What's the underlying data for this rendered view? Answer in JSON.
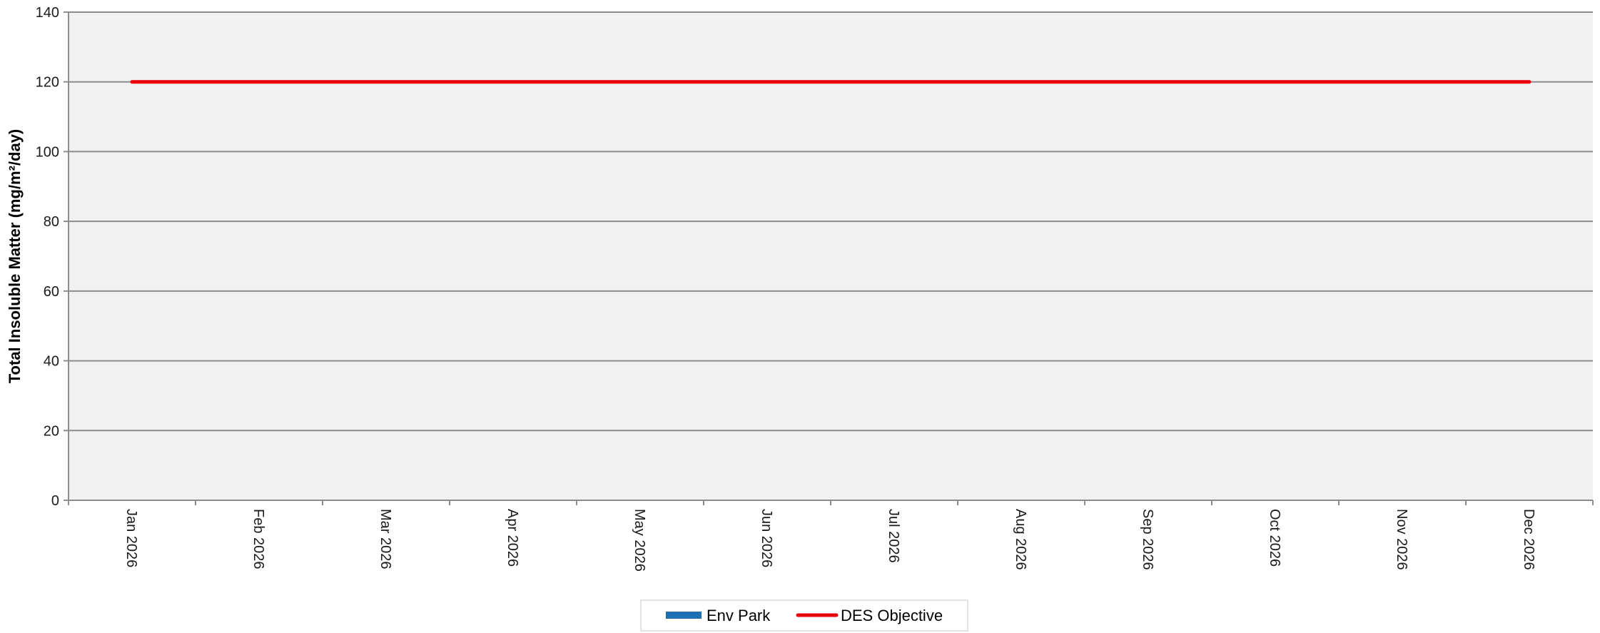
{
  "chart_data": {
    "type": "line",
    "title": "",
    "xlabel": "",
    "ylabel": "Total Insoluble Matter (mg/m²/day)",
    "ylim": [
      0,
      140
    ],
    "yticks": [
      "0",
      "20",
      "40",
      "60",
      "80",
      "100",
      "120",
      "140"
    ],
    "categories": [
      "Jan 2026",
      "Feb 2026",
      "Mar 2026",
      "Apr 2026",
      "May 2026",
      "Jun 2026",
      "Jul 2026",
      "Aug 2026",
      "Sep 2026",
      "Oct 2026",
      "Nov 2026",
      "Dec 2026"
    ],
    "grid": true,
    "legend_position": "bottom",
    "series": [
      {
        "name": "Env Park",
        "type": "bar",
        "color": "#1f6fb5",
        "values": [
          null,
          null,
          null,
          null,
          null,
          null,
          null,
          null,
          null,
          null,
          null,
          null
        ]
      },
      {
        "name": "DES Objective",
        "type": "line",
        "color": "#e8000b",
        "values": [
          120,
          120,
          120,
          120,
          120,
          120,
          120,
          120,
          120,
          120,
          120,
          120
        ]
      }
    ]
  }
}
